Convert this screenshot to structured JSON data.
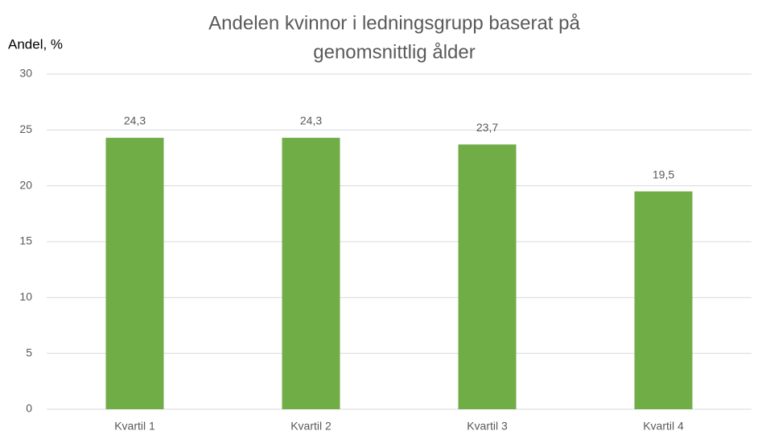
{
  "chart_data": {
    "type": "bar",
    "title": [
      "Andelen kvinnor i ledningsgrupp baserat på",
      "genomsnittlig ålder"
    ],
    "y_label": "Andel, %",
    "categories": [
      "Kvartil 1",
      "Kvartil 2",
      "Kvartil 3",
      "Kvartil 4"
    ],
    "values": [
      24.3,
      24.3,
      23.7,
      19.5
    ],
    "value_labels": [
      "24,3",
      "24,3",
      "23,7",
      "19,5"
    ],
    "color": "#70ad47",
    "ylim": [
      0,
      30
    ],
    "yticks": [
      0,
      5,
      10,
      15,
      20,
      25,
      30
    ],
    "grid": true
  }
}
